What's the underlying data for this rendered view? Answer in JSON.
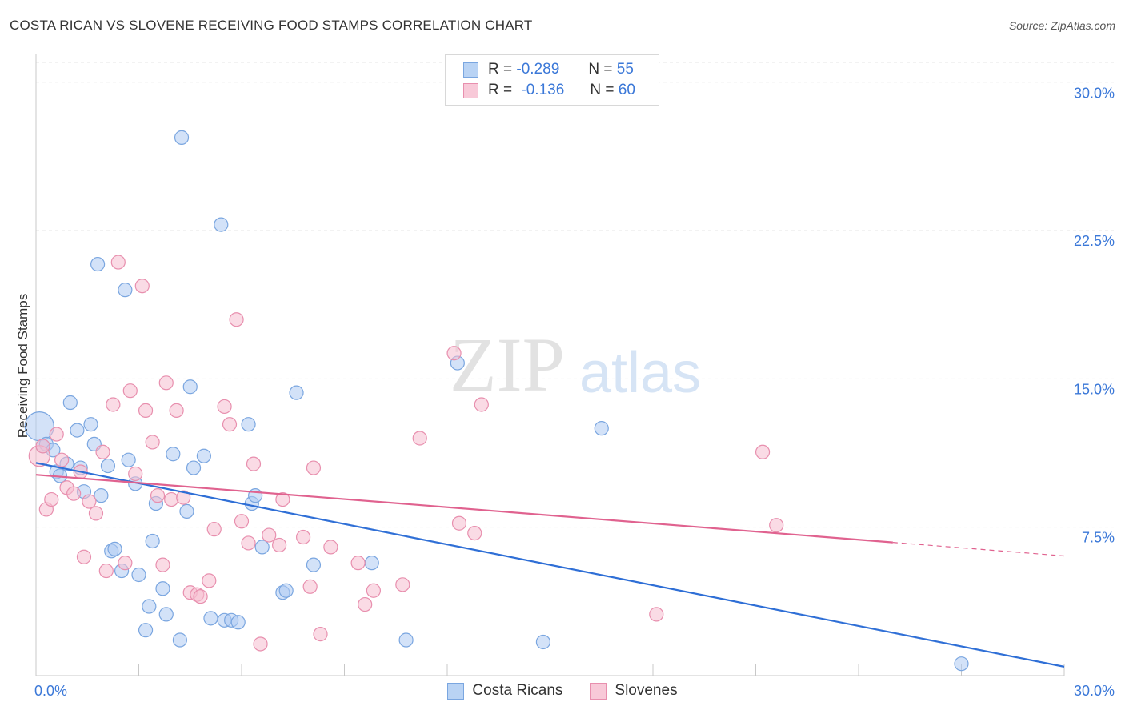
{
  "header": {
    "title": "COSTA RICAN VS SLOVENE RECEIVING FOOD STAMPS CORRELATION CHART",
    "source": "Source: ZipAtlas.com"
  },
  "legend": {
    "rows": [
      {
        "r_label": "R =",
        "r_value": "-0.289",
        "n_label": "N =",
        "n_value": "55"
      },
      {
        "r_label": "R =",
        "r_value": "-0.136",
        "n_label": "N =",
        "n_value": "60"
      }
    ]
  },
  "bottom_legend": [
    "Costa Ricans",
    "Slovenes"
  ],
  "watermark": {
    "zip": "ZIP",
    "atlas": "atlas"
  },
  "colors": {
    "blue_fill": "#aecbf2",
    "blue_stroke": "#7aa6e0",
    "blue_line": "#2f6fd6",
    "pink_fill": "#f6bdd0",
    "pink_stroke": "#e88fae",
    "pink_line": "#e0628f",
    "tick_label": "#3b78d8",
    "grid": "#e4e4e4"
  },
  "chart_data": {
    "type": "scatter",
    "title": "COSTA RICAN VS SLOVENE RECEIVING FOOD STAMPS CORRELATION CHART",
    "xlabel": "",
    "ylabel": "Receiving Food Stamps",
    "xlim": [
      0,
      30
    ],
    "ylim": [
      0,
      31
    ],
    "x_tick_labels": [
      {
        "value": 0,
        "label": "0.0%"
      },
      {
        "value": 30,
        "label": "30.0%"
      }
    ],
    "y_tick_labels": [
      {
        "value": 7.5,
        "label": "7.5%"
      },
      {
        "value": 15,
        "label": "15.0%"
      },
      {
        "value": 22.5,
        "label": "22.5%"
      },
      {
        "value": 30,
        "label": "30.0%"
      }
    ],
    "grid": true,
    "legend_position": "top-center",
    "series": [
      {
        "name": "Costa Ricans",
        "color": "#aecbf2",
        "trend": {
          "x": [
            0,
            30
          ],
          "y": [
            10.75,
            0.45
          ],
          "dashed_from_x": null
        },
        "points": [
          [
            0.1,
            12.6
          ],
          [
            0.2,
            11.6
          ],
          [
            0.3,
            11.7
          ],
          [
            0.5,
            11.4
          ],
          [
            0.6,
            10.3
          ],
          [
            0.7,
            10.1
          ],
          [
            0.9,
            10.7
          ],
          [
            1.0,
            13.8
          ],
          [
            1.2,
            12.4
          ],
          [
            1.3,
            10.5
          ],
          [
            1.4,
            9.3
          ],
          [
            1.6,
            12.7
          ],
          [
            1.7,
            11.7
          ],
          [
            1.8,
            20.8
          ],
          [
            1.9,
            9.1
          ],
          [
            2.1,
            10.6
          ],
          [
            2.2,
            6.3
          ],
          [
            2.3,
            6.4
          ],
          [
            2.5,
            5.3
          ],
          [
            2.6,
            19.5
          ],
          [
            2.7,
            10.9
          ],
          [
            2.9,
            9.7
          ],
          [
            3.0,
            5.1
          ],
          [
            3.2,
            2.3
          ],
          [
            3.3,
            3.5
          ],
          [
            3.4,
            6.8
          ],
          [
            3.5,
            8.7
          ],
          [
            3.7,
            4.4
          ],
          [
            3.8,
            3.1
          ],
          [
            4.0,
            11.2
          ],
          [
            4.2,
            1.8
          ],
          [
            4.25,
            27.2
          ],
          [
            4.4,
            8.3
          ],
          [
            4.5,
            14.6
          ],
          [
            4.6,
            10.5
          ],
          [
            4.9,
            11.1
          ],
          [
            5.1,
            2.9
          ],
          [
            5.4,
            22.8
          ],
          [
            5.5,
            2.8
          ],
          [
            5.7,
            2.8
          ],
          [
            5.9,
            2.7
          ],
          [
            6.2,
            12.7
          ],
          [
            6.3,
            8.7
          ],
          [
            6.4,
            9.1
          ],
          [
            6.6,
            6.5
          ],
          [
            7.2,
            4.2
          ],
          [
            7.3,
            4.3
          ],
          [
            7.6,
            14.3
          ],
          [
            8.1,
            5.6
          ],
          [
            9.8,
            5.7
          ],
          [
            10.8,
            1.8
          ],
          [
            12.3,
            15.8
          ],
          [
            14.8,
            1.7
          ],
          [
            16.5,
            12.5
          ],
          [
            27.0,
            0.6
          ]
        ]
      },
      {
        "name": "Slovenes",
        "color": "#f6bdd0",
        "trend": {
          "x": [
            0,
            30
          ],
          "y": [
            10.15,
            6.05
          ],
          "dashed_from_x": 25.0
        },
        "points": [
          [
            0.1,
            11.1
          ],
          [
            0.2,
            11.6
          ],
          [
            0.3,
            8.4
          ],
          [
            0.45,
            8.9
          ],
          [
            0.6,
            12.2
          ],
          [
            0.75,
            10.9
          ],
          [
            0.9,
            9.5
          ],
          [
            1.1,
            9.2
          ],
          [
            1.3,
            10.3
          ],
          [
            1.4,
            6.0
          ],
          [
            1.55,
            8.8
          ],
          [
            1.75,
            8.2
          ],
          [
            1.95,
            11.3
          ],
          [
            2.05,
            5.3
          ],
          [
            2.25,
            13.7
          ],
          [
            2.4,
            20.9
          ],
          [
            2.6,
            5.7
          ],
          [
            2.75,
            14.4
          ],
          [
            2.9,
            10.2
          ],
          [
            3.1,
            19.7
          ],
          [
            3.2,
            13.4
          ],
          [
            3.4,
            11.8
          ],
          [
            3.55,
            9.1
          ],
          [
            3.7,
            5.6
          ],
          [
            3.8,
            14.8
          ],
          [
            3.95,
            8.9
          ],
          [
            4.1,
            13.4
          ],
          [
            4.3,
            9.0
          ],
          [
            4.5,
            4.2
          ],
          [
            4.7,
            4.1
          ],
          [
            4.8,
            4.0
          ],
          [
            5.05,
            4.8
          ],
          [
            5.2,
            7.4
          ],
          [
            5.5,
            13.6
          ],
          [
            5.65,
            12.7
          ],
          [
            5.85,
            18.0
          ],
          [
            6.0,
            7.8
          ],
          [
            6.2,
            6.7
          ],
          [
            6.35,
            10.7
          ],
          [
            6.55,
            1.6
          ],
          [
            6.8,
            7.1
          ],
          [
            7.1,
            6.6
          ],
          [
            7.2,
            8.9
          ],
          [
            7.8,
            7.0
          ],
          [
            8.0,
            4.5
          ],
          [
            8.1,
            10.5
          ],
          [
            8.3,
            2.1
          ],
          [
            8.6,
            6.5
          ],
          [
            9.4,
            5.7
          ],
          [
            9.6,
            3.6
          ],
          [
            9.85,
            4.3
          ],
          [
            10.7,
            4.6
          ],
          [
            11.2,
            12.0
          ],
          [
            12.2,
            16.3
          ],
          [
            12.35,
            7.7
          ],
          [
            12.8,
            7.2
          ],
          [
            13.0,
            13.7
          ],
          [
            18.1,
            3.1
          ],
          [
            21.2,
            11.3
          ],
          [
            21.6,
            7.6
          ]
        ]
      }
    ]
  }
}
